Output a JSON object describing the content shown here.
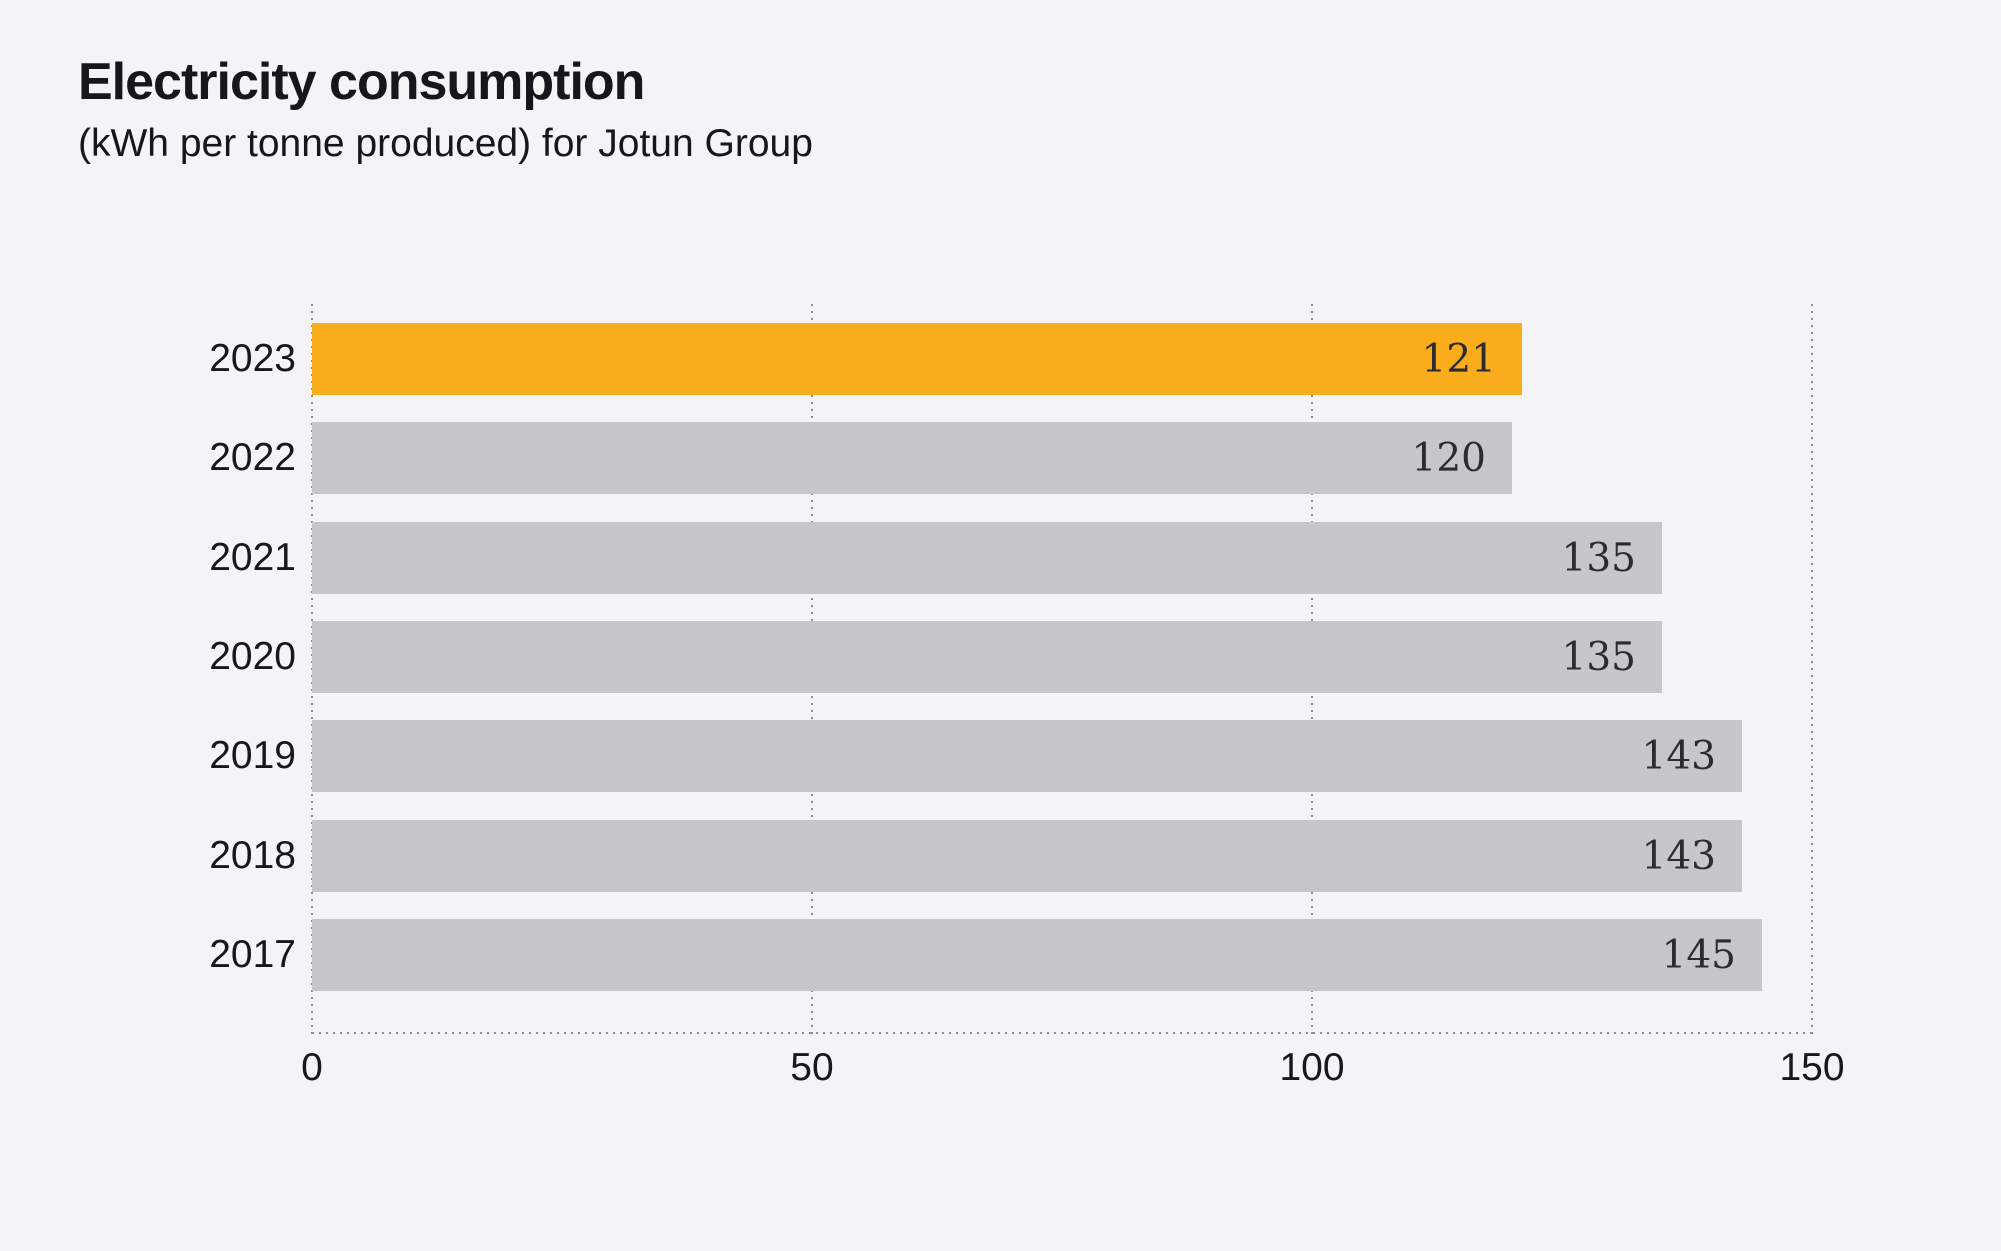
{
  "title": "Electricity consumption",
  "subtitle": "(kWh per tonne produced) for Jotun Group",
  "chart_data": {
    "type": "bar",
    "orientation": "horizontal",
    "title": "Electricity consumption",
    "subtitle": "(kWh per tonne produced) for Jotun Group",
    "categories": [
      "2023",
      "2022",
      "2021",
      "2020",
      "2019",
      "2018",
      "2017"
    ],
    "values": [
      121,
      120,
      135,
      135,
      143,
      143,
      145
    ],
    "value_labels": [
      "121",
      "120",
      "135",
      "135",
      "143",
      "143",
      "145"
    ],
    "xlabel": "",
    "ylabel": "",
    "xlim": [
      0,
      150
    ],
    "xticks": [
      "0",
      "50",
      "100",
      "150"
    ],
    "xtick_values": [
      0,
      50,
      100,
      150
    ],
    "grid": {
      "vertical_dotted_at_xticks": true,
      "dotted_baseline": true
    },
    "legend_position": "none",
    "highlight": {
      "category": "2023",
      "color": "#F9AD1D"
    },
    "colors": {
      "bar_default": "#C7C7CA",
      "bar_highlight": "#F9AD1D",
      "background": "#F4F4F6",
      "grid_dots": "#8D8D94",
      "heading_text": "#16161C",
      "axis_text": "#17171D",
      "value_text": "#2B2B31"
    }
  }
}
